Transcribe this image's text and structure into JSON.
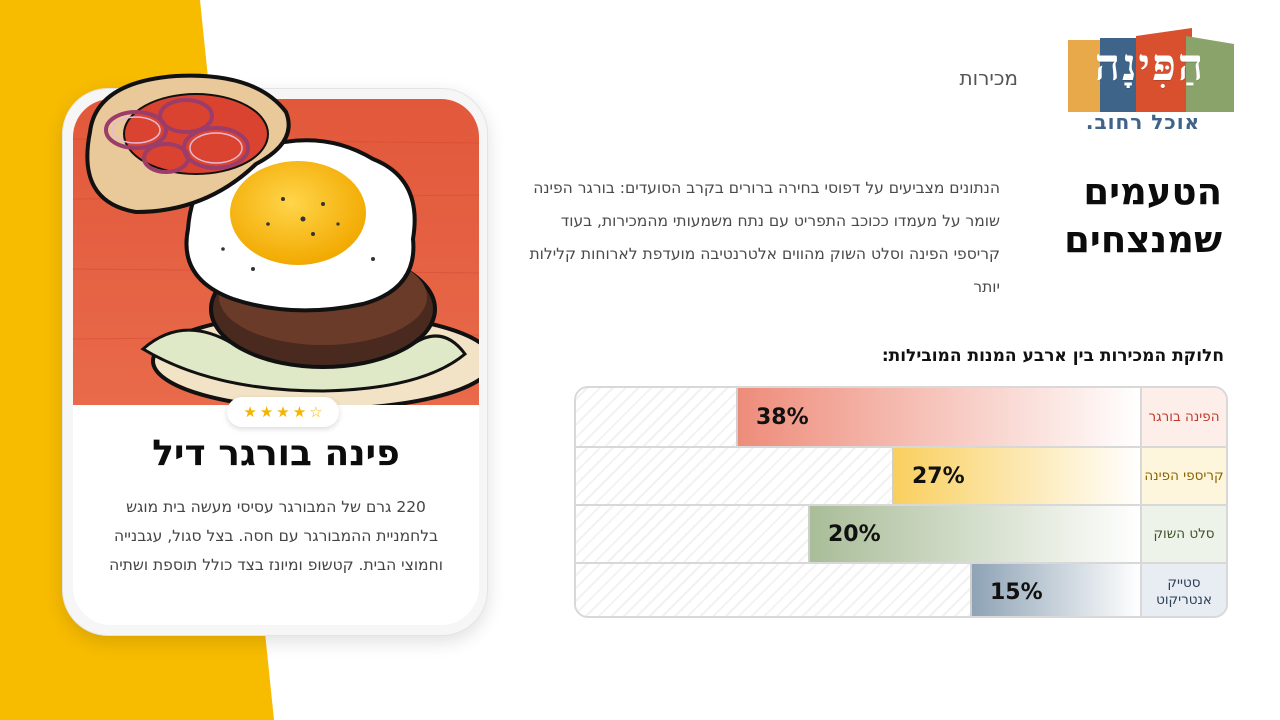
{
  "brand": {
    "logo_text": "הַפִּינָה",
    "tagline": "אוכל רחוב.",
    "colors": {
      "yellow": "#f5b800",
      "orange": "#e8a94a",
      "blue": "#3f6489",
      "green": "#8aa36b",
      "red": "#d9502f"
    }
  },
  "header": {
    "section_label": "מכירות"
  },
  "intro": {
    "heading_line1": "הטעמים",
    "heading_line2": "שמנצחים",
    "description": "הנתונים מצביעים על דפוסי בחירה ברורים בקרב הסועדים: בורגר הפינה שומר על מעמדו ככוכב התפריט עם נתח משמעותי מהמכירות, בעוד קריספי הפינה וסלט השוק מהווים אלטרנטיבה מועדפת לארוחות קלילות יותר"
  },
  "chart_data": {
    "type": "bar",
    "orientation": "horizontal",
    "title": "חלוקת המכירות בין ארבע המנות המובילות:",
    "categories": [
      "הפינה בורגר",
      "קריספי הפינה",
      "סלט השוק",
      "סטייק אנטריקוט"
    ],
    "values": [
      38,
      27,
      20,
      15
    ],
    "value_labels": [
      "38%",
      "27%",
      "20%",
      "15%"
    ],
    "xlim": [
      0,
      100
    ],
    "colors": [
      "#ee8c7a",
      "#f9cf5e",
      "#a9bd98",
      "#8ea3b5"
    ],
    "label_colors": [
      "#c0392b",
      "#8a6400",
      "#3d5229",
      "#2b3f55"
    ],
    "label_backgrounds": [
      "#fdeeea",
      "#fdf6dc",
      "#eef3e9",
      "#e7edf3"
    ]
  },
  "card": {
    "rating": 4,
    "rating_max": 5,
    "title": "פינה בורגר דיל",
    "description": "220 גרם של המבורגר עסיסי מעשה בית מוגש בלחמניית ההמבורגר עם חסה. בצל סגול, עגבנייה וחמוצי הבית. קטשופ ומיונז בצד כולל תוספת ושתיה"
  }
}
